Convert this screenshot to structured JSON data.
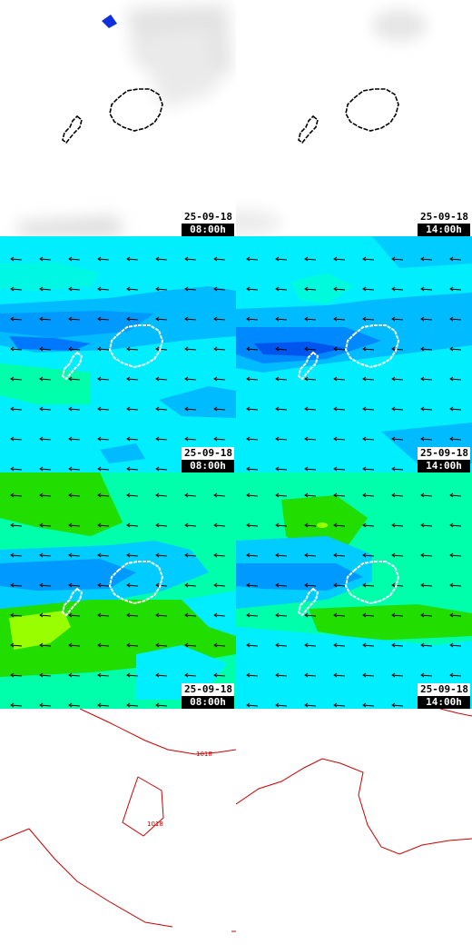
{
  "rows": [
    {
      "id": "cloud",
      "panels": [
        {
          "date": "25-09-18",
          "time": "08:00h"
        },
        {
          "date": "25-09-18",
          "time": "14:00h"
        }
      ]
    },
    {
      "id": "wind-upper",
      "panels": [
        {
          "date": "25-09-18",
          "time": "08:00h"
        },
        {
          "date": "25-09-18",
          "time": "14:00h"
        }
      ]
    },
    {
      "id": "wind-lower",
      "panels": [
        {
          "date": "25-09-18",
          "time": "08:00h"
        },
        {
          "date": "25-09-18",
          "time": "14:00h"
        }
      ]
    },
    {
      "id": "pressure",
      "panels": [
        {
          "isobars": [
            "1018",
            "1018"
          ]
        },
        {
          "isobars": []
        }
      ]
    }
  ],
  "colors": {
    "coast_on_white": "#000000",
    "coast_on_color": "#ffffff",
    "isobar": "#cc0000",
    "wind_arrow": "#000000",
    "cyan": "#00eeff",
    "aqua_green": "#00ffaa",
    "light_blue": "#00bbff",
    "blue": "#0088ff",
    "deep_blue": "#0055ee",
    "green": "#22dd00",
    "yellow_green": "#99ff00",
    "cloud_grey": "#e0e0e0",
    "precip_marker": "#1030e0"
  },
  "wind_direction": "westward"
}
